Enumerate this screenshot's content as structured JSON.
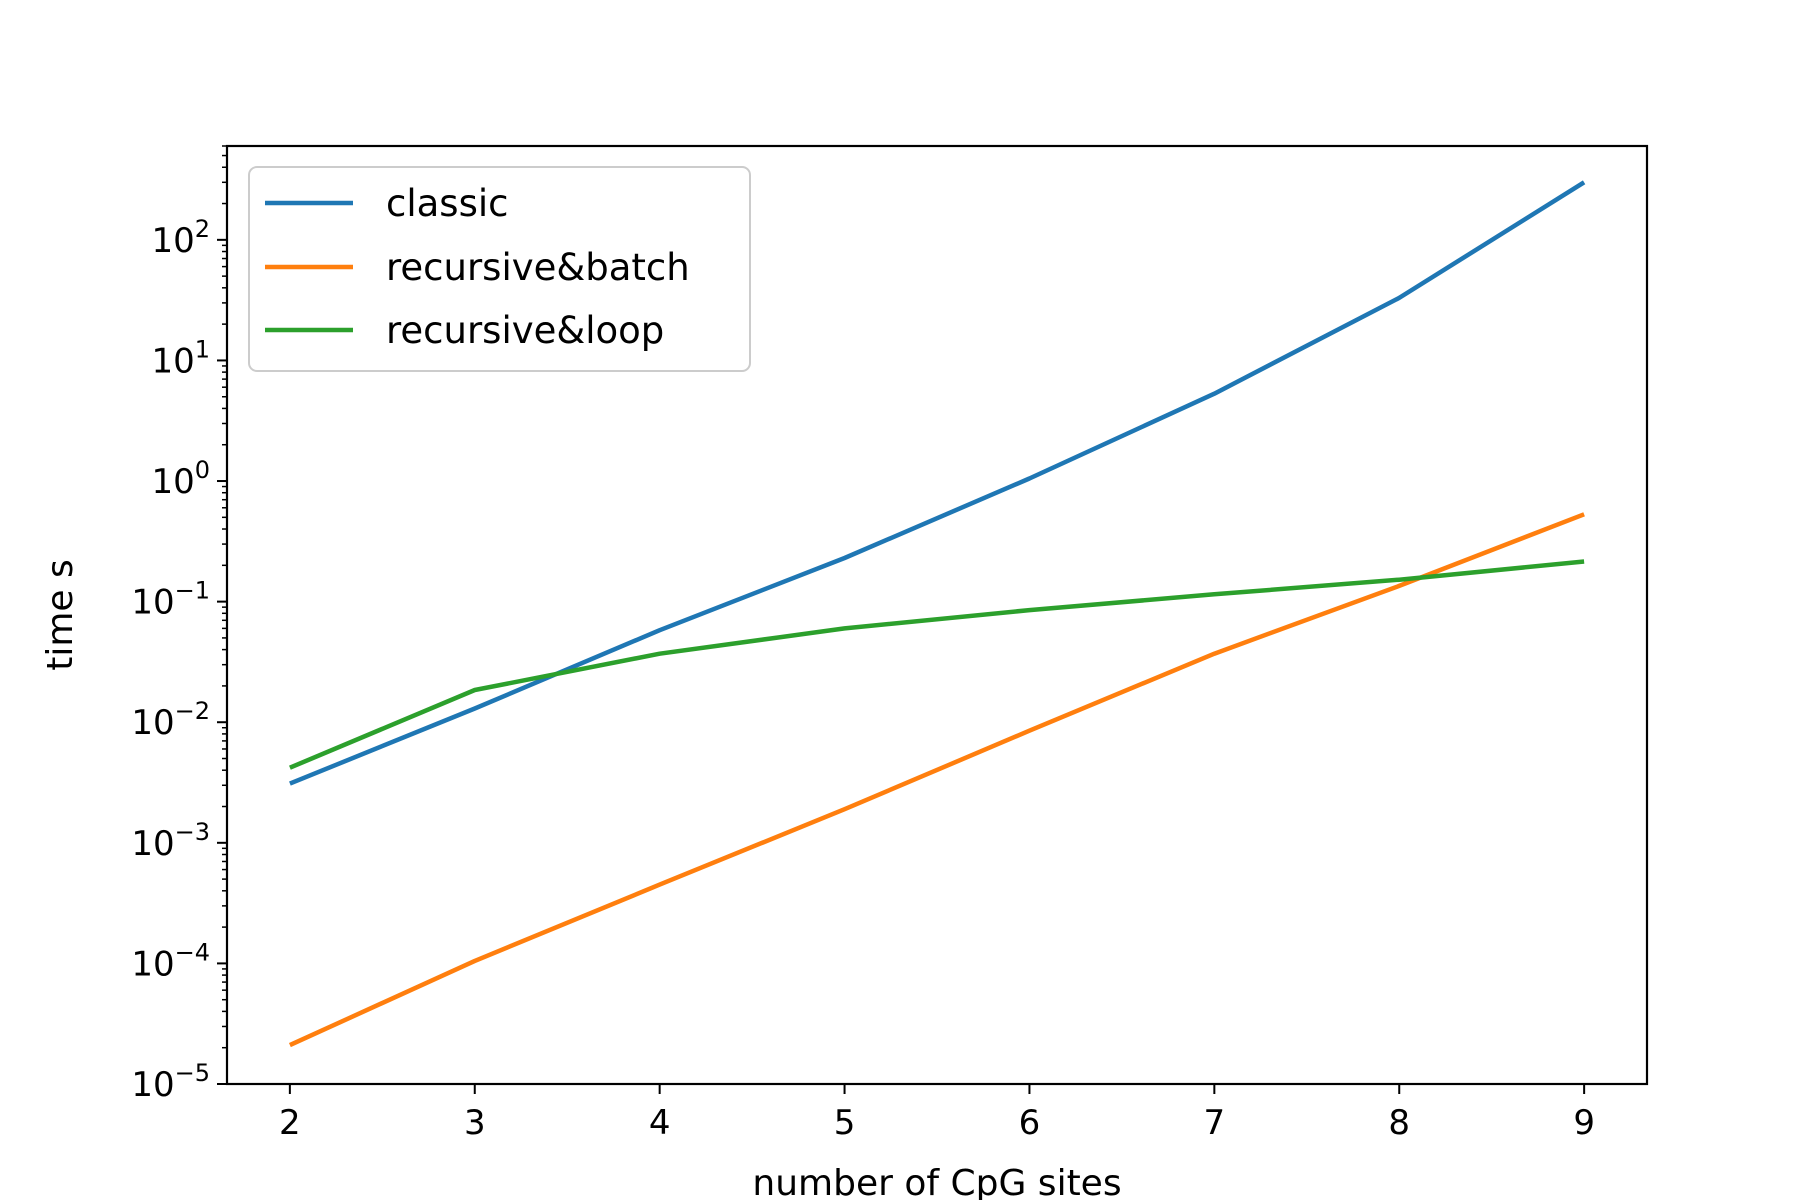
{
  "chart_data": {
    "type": "line",
    "xlabel": "number of CpG sites",
    "ylabel": "time s",
    "x": [
      2,
      3,
      4,
      5,
      6,
      7,
      8,
      9
    ],
    "xlim": [
      1.66,
      9.34
    ],
    "ylim": [
      1e-05,
      600
    ],
    "yscale": "log",
    "xticks": [
      "2",
      "3",
      "4",
      "5",
      "6",
      "7",
      "8",
      "9"
    ],
    "yticks": [
      {
        "base": "10",
        "exp": "−5",
        "value": 1e-05
      },
      {
        "base": "10",
        "exp": "−4",
        "value": 0.0001
      },
      {
        "base": "10",
        "exp": "−3",
        "value": 0.001
      },
      {
        "base": "10",
        "exp": "−2",
        "value": 0.01
      },
      {
        "base": "10",
        "exp": "−1",
        "value": 0.1
      },
      {
        "base": "10",
        "exp": "0",
        "value": 1
      },
      {
        "base": "10",
        "exp": "1",
        "value": 10
      },
      {
        "base": "10",
        "exp": "2",
        "value": 100
      }
    ],
    "legend_position": "top-left",
    "grid": false,
    "series": [
      {
        "name": "classic",
        "color": "#1f77b4",
        "values": [
          0.0031,
          0.013,
          0.058,
          0.23,
          1.05,
          5.3,
          33,
          300
        ]
      },
      {
        "name": "recursive&batch",
        "color": "#ff7f0e",
        "values": [
          2.1e-05,
          0.000105,
          0.00045,
          0.0019,
          0.0085,
          0.037,
          0.135,
          0.53
        ]
      },
      {
        "name": "recursive&loop",
        "color": "#2ca02c",
        "values": [
          0.0042,
          0.0185,
          0.037,
          0.06,
          0.085,
          0.115,
          0.152,
          0.215
        ]
      }
    ]
  }
}
